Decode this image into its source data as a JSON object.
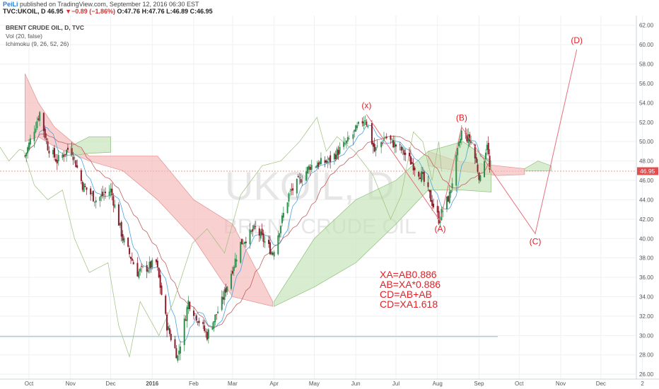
{
  "header": {
    "author": "PeiLi",
    "published_text": " published on TradingView.com, September 12, 2016 06:30 EST",
    "symbol": "TVC:UKOIL, D",
    "last": "46.95",
    "change_arrow": "▼",
    "change": "−0.89 (−1.86%)",
    "ohlc": "O:47.76  H:47.76  L:46.89  C:46.95"
  },
  "legend": {
    "title": "BRENT CRUDE OIL, D, TVC",
    "vol": "Vol (20, false)",
    "ichimoku": "Ichimoku (9, 26, 52, 26)"
  },
  "watermark": {
    "ticker": "UKOIL, D",
    "name": "BRENT CRUDE OIL"
  },
  "colors": {
    "up": "#2f8f4f",
    "down": "#8a1c2b",
    "cloud_bear": "#f5b7b7",
    "cloud_bull": "#c3e3b5",
    "pattern": "#e8707a",
    "annotation": "#e21f26",
    "price_badge": "#e24e4e",
    "tenkan": "#4aa3df",
    "kijun": "#c0605f",
    "chikou": "#9bbf7a"
  },
  "chart_data": {
    "type": "candlestick",
    "ylim": [
      25.5,
      63
    ],
    "y_ticks": [
      "26.00",
      "28.00",
      "30.00",
      "32.00",
      "34.00",
      "36.00",
      "38.00",
      "40.00",
      "42.00",
      "44.00",
      "46.00",
      "48.00",
      "50.00",
      "52.00",
      "54.00",
      "56.00",
      "58.00",
      "60.00",
      "62.00"
    ],
    "x_ticks": [
      "Oct",
      "Nov",
      "Dec",
      "2016",
      "Feb",
      "Mar",
      "Apr",
      "May",
      "Jun",
      "Jul",
      "Aug",
      "Sep",
      "Oct",
      "Nov",
      "Dec",
      "2"
    ],
    "last_price_label": "46.95",
    "support_level": 29.9,
    "price_path": [
      [
        "2015-09-28",
        48.5
      ],
      [
        "2015-10-09",
        53.0
      ],
      [
        "2015-10-15",
        49.5
      ],
      [
        "2015-10-22",
        48.0
      ],
      [
        "2015-11-01",
        49.5
      ],
      [
        "2015-11-10",
        45.5
      ],
      [
        "2015-11-20",
        44.0
      ],
      [
        "2015-12-01",
        45.0
      ],
      [
        "2015-12-10",
        40.0
      ],
      [
        "2015-12-21",
        36.5
      ],
      [
        "2016-01-04",
        37.5
      ],
      [
        "2016-01-12",
        31.0
      ],
      [
        "2016-01-20",
        27.8
      ],
      [
        "2016-01-28",
        33.5
      ],
      [
        "2016-02-11",
        30.0
      ],
      [
        "2016-02-22",
        33.5
      ],
      [
        "2016-03-07",
        39.5
      ],
      [
        "2016-03-18",
        41.0
      ],
      [
        "2016-03-31",
        38.5
      ],
      [
        "2016-04-12",
        44.5
      ],
      [
        "2016-04-28",
        47.5
      ],
      [
        "2016-05-12",
        48.0
      ],
      [
        "2016-05-26",
        50.0
      ],
      [
        "2016-06-08",
        52.5
      ],
      [
        "2016-06-15",
        49.0
      ],
      [
        "2016-06-23",
        50.5
      ],
      [
        "2016-07-06",
        49.0
      ],
      [
        "2016-07-20",
        46.5
      ],
      [
        "2016-08-02",
        42.0
      ],
      [
        "2016-08-10",
        44.5
      ],
      [
        "2016-08-19",
        51.0
      ],
      [
        "2016-08-26",
        50.0
      ],
      [
        "2016-09-02",
        46.0
      ],
      [
        "2016-09-07",
        50.0
      ],
      [
        "2016-09-09",
        46.95
      ]
    ],
    "ichimoku_cloud": {
      "bearish_regions": [
        [
          [
            "2015-09-28",
            57.0,
            50.0
          ],
          [
            "2015-10-08",
            54.0,
            50.5
          ],
          [
            "2015-10-20",
            51.5,
            49.5
          ],
          [
            "2015-11-15",
            48.5,
            48.0
          ],
          [
            "2015-12-10",
            48.5,
            47.0
          ],
          [
            "2016-01-05",
            48.5,
            44.0
          ],
          [
            "2016-02-01",
            44.0,
            40.0
          ],
          [
            "2016-03-01",
            41.5,
            34.0
          ],
          [
            "2016-03-31",
            33.5,
            33.0
          ]
        ],
        [
          [
            "2016-07-25",
            49.0,
            47.5
          ],
          [
            "2016-08-15",
            48.0,
            47.0
          ],
          [
            "2016-09-15",
            47.5,
            46.5
          ],
          [
            "2016-10-05",
            47.2,
            46.6
          ]
        ]
      ],
      "bullish_regions": [
        [
          [
            "2015-11-01",
            49.5,
            48.5
          ],
          [
            "2015-11-15",
            50.5,
            48.8
          ],
          [
            "2015-12-01",
            50.5,
            48.9
          ]
        ],
        [
          [
            "2016-04-01",
            33.5,
            33.0
          ],
          [
            "2016-05-01",
            40.0,
            35.0
          ],
          [
            "2016-06-01",
            44.0,
            37.5
          ],
          [
            "2016-07-01",
            46.0,
            41.5
          ],
          [
            "2016-07-25",
            49.0,
            45.0
          ],
          [
            "2016-08-20",
            50.0,
            45.0
          ],
          [
            "2016-09-10",
            48.0,
            44.8
          ]
        ],
        [
          [
            "2016-10-05",
            47.2,
            47.0
          ],
          [
            "2016-10-15",
            48.0,
            47.0
          ],
          [
            "2016-10-25",
            47.5,
            47.0
          ]
        ]
      ]
    },
    "harmonic_pattern": {
      "points": [
        {
          "label": "(x)",
          "date": "2016-06-09",
          "price": 52.8
        },
        {
          "label": "(A)",
          "date": "2016-08-03",
          "price": 41.8
        },
        {
          "label": "(B)",
          "date": "2016-08-19",
          "price": 51.5
        },
        {
          "label": "(C)",
          "date": "2016-10-13",
          "price": 40.5
        },
        {
          "label": "(D)",
          "date": "2016-11-13",
          "price": 59.5
        }
      ]
    },
    "annotations": [
      "XA=AB0.886",
      "AB=XA*0.886",
      "CD=AB+AB",
      "CD=XA1.618"
    ]
  }
}
